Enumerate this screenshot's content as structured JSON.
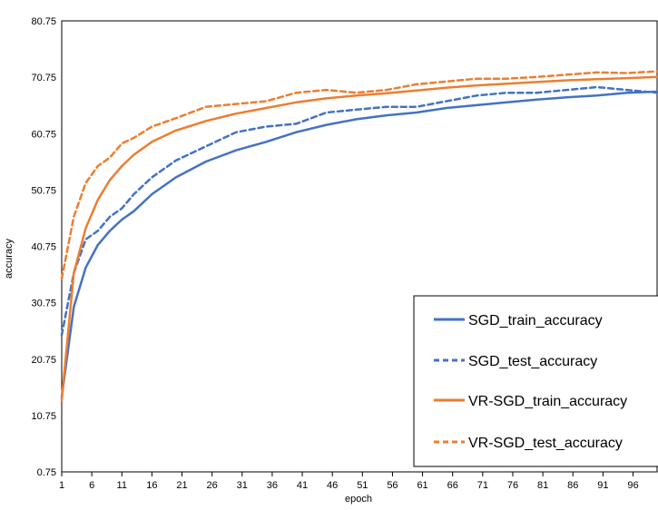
{
  "chart_data": {
    "type": "line",
    "title": "",
    "xlabel": "epoch",
    "ylabel": "accuracy",
    "xlim": [
      1,
      100
    ],
    "ylim": [
      0.75,
      80.75
    ],
    "y_ticks": [
      "0.75",
      "10.75",
      "20.75",
      "30.75",
      "40.75",
      "50.75",
      "60.75",
      "70.75",
      "80.75"
    ],
    "x_ticks": [
      "1",
      "6",
      "11",
      "16",
      "21",
      "26",
      "31",
      "36",
      "41",
      "46",
      "51",
      "56",
      "61",
      "66",
      "71",
      "76",
      "81",
      "86",
      "91",
      "96"
    ],
    "grid": false,
    "legend_position": "bottom-right",
    "series": [
      {
        "name": "SGD_train_accuracy",
        "color": "#4472C4",
        "dash": "solid",
        "x": [
          1,
          3,
          5,
          7,
          9,
          11,
          13,
          16,
          20,
          25,
          30,
          35,
          40,
          45,
          50,
          55,
          60,
          65,
          70,
          75,
          80,
          85,
          90,
          95,
          100
        ],
        "y": [
          14,
          30,
          37,
          41,
          43.5,
          45.5,
          47,
          50,
          53,
          55.8,
          57.8,
          59.3,
          61,
          62.3,
          63.3,
          64,
          64.5,
          65.3,
          65.8,
          66.3,
          66.8,
          67.2,
          67.5,
          68,
          68.2
        ]
      },
      {
        "name": "SGD_test_accuracy",
        "color": "#4472C4",
        "dash": "dashed",
        "x": [
          1,
          3,
          5,
          7,
          9,
          11,
          13,
          16,
          20,
          25,
          30,
          35,
          40,
          45,
          50,
          55,
          60,
          65,
          70,
          75,
          80,
          85,
          90,
          95,
          100
        ],
        "y": [
          25,
          36,
          42,
          43.5,
          46,
          47.5,
          50,
          53,
          56,
          58.5,
          61,
          62,
          62.5,
          64.5,
          65,
          65.5,
          65.5,
          66.5,
          67.5,
          68,
          68,
          68.5,
          69,
          68.5,
          68
        ]
      },
      {
        "name": "VR-SGD_train_accuracy",
        "color": "#ED7D31",
        "dash": "solid",
        "x": [
          1,
          3,
          5,
          7,
          9,
          11,
          13,
          16,
          20,
          25,
          30,
          35,
          40,
          45,
          50,
          55,
          60,
          65,
          70,
          75,
          80,
          85,
          90,
          95,
          100
        ],
        "y": [
          13.5,
          36,
          44,
          49,
          52.5,
          55,
          57,
          59.3,
          61.3,
          63,
          64.3,
          65.3,
          66.3,
          67,
          67.5,
          67.9,
          68.4,
          68.9,
          69.3,
          69.6,
          69.9,
          70.2,
          70.4,
          70.6,
          70.8
        ]
      },
      {
        "name": "VR-SGD_test_accuracy",
        "color": "#ED7D31",
        "dash": "dashed",
        "x": [
          1,
          3,
          5,
          7,
          9,
          11,
          13,
          16,
          20,
          25,
          30,
          35,
          40,
          45,
          50,
          55,
          60,
          65,
          70,
          75,
          80,
          85,
          90,
          95,
          100
        ],
        "y": [
          35,
          46,
          52,
          55,
          56.5,
          59,
          60,
          62,
          63.5,
          65.5,
          66,
          66.5,
          68,
          68.5,
          68,
          68.5,
          69.5,
          70,
          70.5,
          70.5,
          70.8,
          71.2,
          71.6,
          71.5,
          71.8
        ]
      }
    ]
  }
}
